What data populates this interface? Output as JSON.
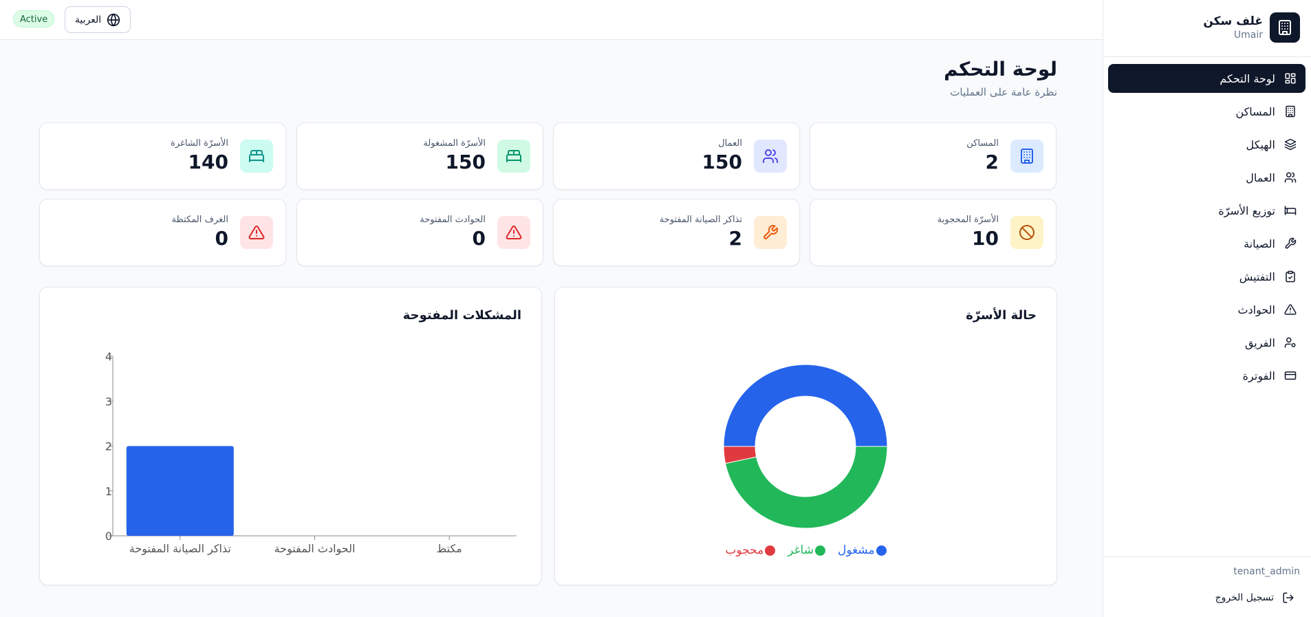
{
  "colors": {
    "dark": "#0f172a",
    "occupied": "#2563eb",
    "vacant": "#22b85a",
    "blocked": "#e03a3e",
    "bar": "#2563eb"
  },
  "sidebar": {
    "brand_name": "غلف سكن",
    "brand_sub": "Umair",
    "items": [
      {
        "label": "لوحة التحكم",
        "icon": "dashboard-grid-icon",
        "active": true
      },
      {
        "label": "المساكن",
        "icon": "building-icon"
      },
      {
        "label": "الهيكل",
        "icon": "layers-icon"
      },
      {
        "label": "العمال",
        "icon": "users-icon"
      },
      {
        "label": "توزيع الأسرّة",
        "icon": "bed-icon"
      },
      {
        "label": "الصيانة",
        "icon": "wrench-icon"
      },
      {
        "label": "التفتيش",
        "icon": "clipboard-check-icon"
      },
      {
        "label": "الحوادث",
        "icon": "alert-triangle-icon"
      },
      {
        "label": "الفريق",
        "icon": "user-cog-icon"
      },
      {
        "label": "الفوترة",
        "icon": "credit-card-icon"
      }
    ],
    "role": "tenant_admin",
    "logout_label": "تسجيل الخروج"
  },
  "topbar": {
    "status_badge": "Active",
    "language_label": "العربية"
  },
  "main": {
    "title": "لوحة التحكم",
    "subtitle": "نظرة عامة على العمليات"
  },
  "stats": [
    {
      "label": "المساكن",
      "value": "2",
      "icon": "building-icon",
      "bg": "#dbeafe",
      "fg": "#2563eb"
    },
    {
      "label": "العمال",
      "value": "150",
      "icon": "users-icon",
      "bg": "#e0e7ff",
      "fg": "#4f46e5"
    },
    {
      "label": "الأسرّة المشغولة",
      "value": "150",
      "icon": "bed-icon",
      "bg": "#d1fae5",
      "fg": "#059669"
    },
    {
      "label": "الأسرّة الشاغرة",
      "value": "140",
      "icon": "bed-icon",
      "bg": "#ccfbf1",
      "fg": "#0d9488"
    },
    {
      "label": "الأسرّة المحجوبة",
      "value": "10",
      "icon": "ban-icon",
      "bg": "#fef3c7",
      "fg": "#b45309"
    },
    {
      "label": "تذاكر الصيانة المفتوحة",
      "value": "2",
      "icon": "wrench-icon",
      "bg": "#ffedd5",
      "fg": "#ea580c"
    },
    {
      "label": "الحوادث المفتوحة",
      "value": "0",
      "icon": "alert-triangle-icon",
      "bg": "#ffe4e6",
      "fg": "#dc2626"
    },
    {
      "label": "الغرف المكتظة",
      "value": "0",
      "icon": "alert-triangle-icon",
      "bg": "#ffe4e6",
      "fg": "#dc2626"
    }
  ],
  "chart_data": [
    {
      "type": "pie",
      "title": "حالة الأسرّة",
      "donut": true,
      "categories": [
        "مشغول",
        "شاغر",
        "محجوب"
      ],
      "values": [
        150,
        140,
        10
      ],
      "colors": [
        "#2563eb",
        "#22b85a",
        "#e03a3e"
      ],
      "legend": "bottom"
    },
    {
      "type": "bar",
      "title": "المشكلات المفتوحة",
      "categories": [
        "تذاكر الصيانة المفتوحة",
        "الحوادث المفتوحة",
        "مكتظ"
      ],
      "values": [
        2,
        0,
        0
      ],
      "ylim": [
        0,
        4
      ],
      "yticks": [
        "0",
        "1",
        "2",
        "3",
        "4"
      ],
      "grid": false
    }
  ]
}
